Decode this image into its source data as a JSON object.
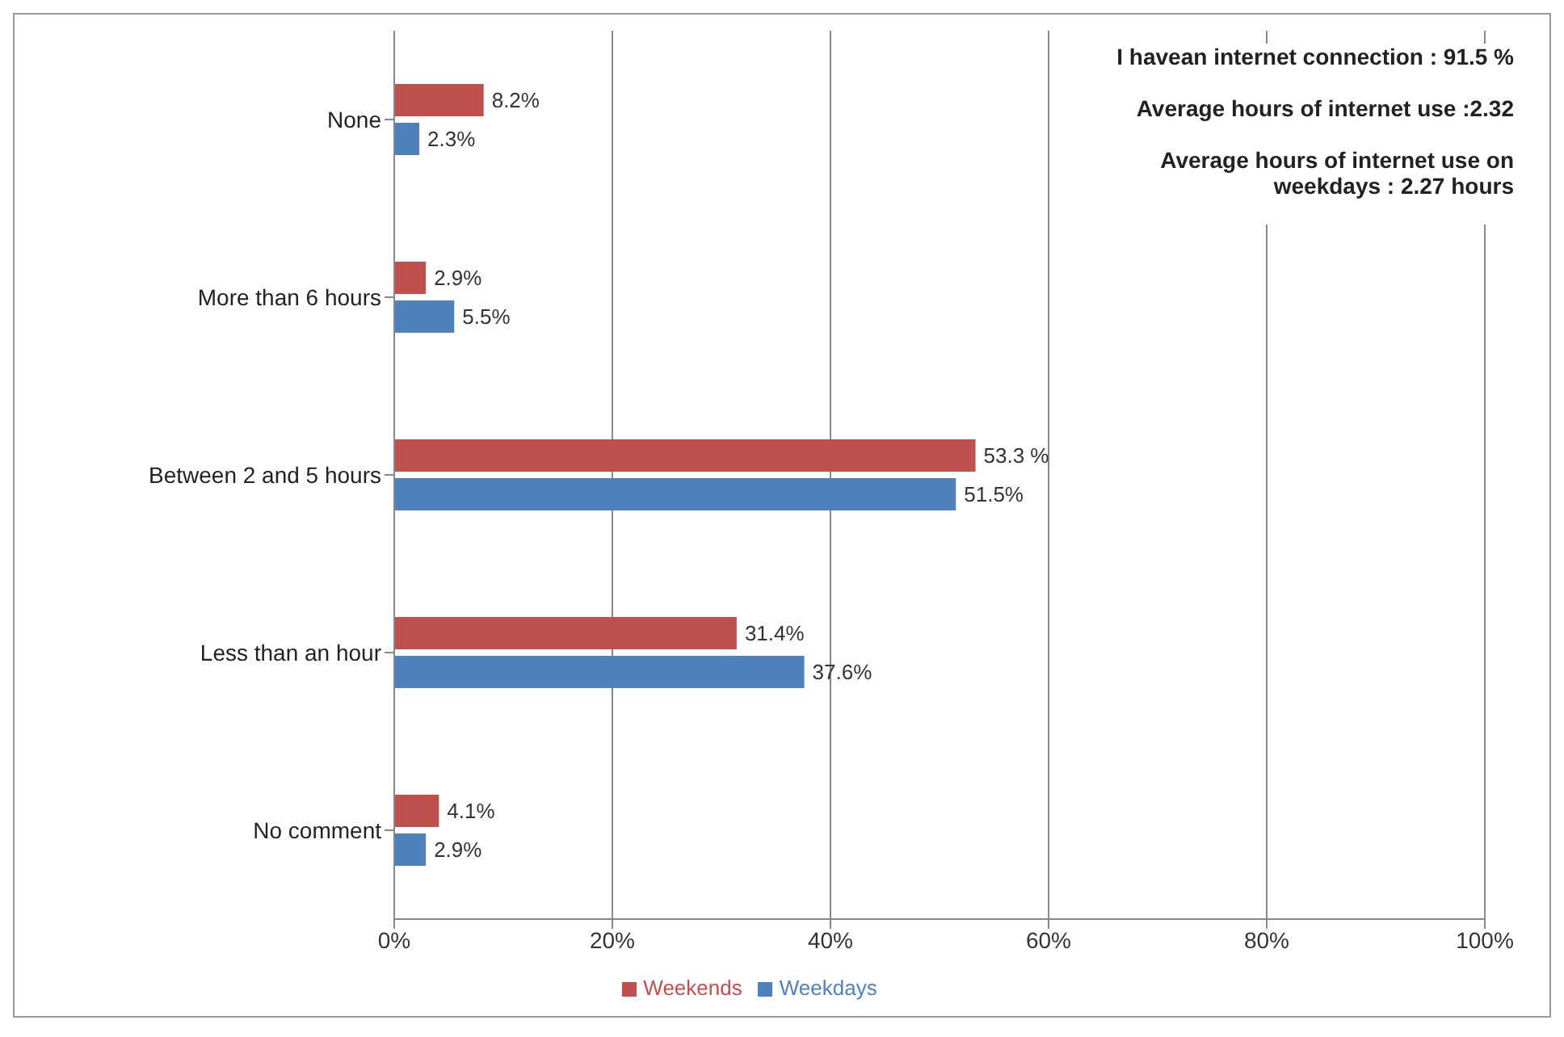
{
  "chart_data": {
    "type": "bar",
    "orientation": "horizontal",
    "categories": [
      "None",
      "More than 6 hours",
      "Between 2 and 5 hours",
      "Less than an hour",
      "No comment"
    ],
    "series": [
      {
        "name": "Weekends",
        "color": "#c0504d",
        "values": [
          8.2,
          2.9,
          53.3,
          31.4,
          4.1
        ],
        "value_labels": [
          "8.2%",
          "2.9%",
          "53.3 %",
          "31.4%",
          "4.1%"
        ]
      },
      {
        "name": "Weekdays",
        "color": "#4f81bd",
        "values": [
          2.3,
          5.5,
          51.5,
          37.6,
          2.9
        ],
        "value_labels": [
          "2.3%",
          "5.5%",
          "51.5%",
          "37.6%",
          "2.9%"
        ]
      }
    ],
    "xlim": [
      0,
      100
    ],
    "xticks": [
      {
        "value": 0,
        "label": "0%"
      },
      {
        "value": 20,
        "label": "20%"
      },
      {
        "value": 40,
        "label": "40%"
      },
      {
        "value": 60,
        "label": "60%"
      },
      {
        "value": 80,
        "label": "80%"
      },
      {
        "value": 100,
        "label": "100%"
      }
    ],
    "grid": "x",
    "legend": "bottom",
    "annotations": [
      "I havean internet connection : 91.5 %",
      "Average hours of internet use :2.32",
      "Average hours of internet use on weekdays : 2.27 hours"
    ]
  }
}
